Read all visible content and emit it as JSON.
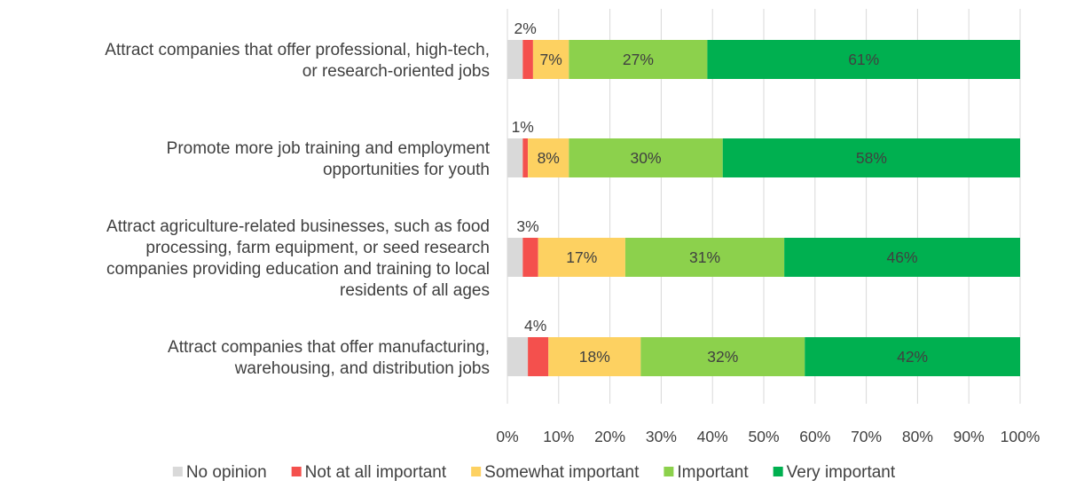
{
  "chart_data": {
    "type": "bar",
    "orientation": "horizontal",
    "stacked": true,
    "categories": [
      [
        "Attract companies that offer professional, high-tech,",
        "or research-oriented jobs"
      ],
      [
        "Promote more job training and employment",
        "opportunities for youth"
      ],
      [
        "Attract agriculture-related businesses, such as food",
        "processing, farm equipment, or seed research",
        "companies providing education and training to local",
        "residents of all ages"
      ],
      [
        "Attract companies that offer manufacturing,",
        "warehousing, and distribution jobs"
      ]
    ],
    "series": [
      {
        "name": "No opinion",
        "color": "#d9d9d9",
        "values": [
          3,
          3,
          3,
          4
        ],
        "labels": [
          "",
          "",
          "",
          ""
        ]
      },
      {
        "name": "Not at all important",
        "color": "#f4504d",
        "values": [
          2,
          1,
          3,
          4
        ],
        "labels": [
          "2%",
          "1%",
          "3%",
          "4%"
        ],
        "label_position": "above"
      },
      {
        "name": "Somewhat important",
        "color": "#fdd161",
        "values": [
          7,
          8,
          17,
          18
        ],
        "labels": [
          "7%",
          "8%",
          "17%",
          "18%"
        ]
      },
      {
        "name": "Important",
        "color": "#8cd14c",
        "values": [
          27,
          30,
          31,
          32
        ],
        "labels": [
          "27%",
          "30%",
          "31%",
          "32%"
        ]
      },
      {
        "name": "Very important",
        "color": "#00b050",
        "values": [
          61,
          58,
          46,
          42
        ],
        "labels": [
          "61%",
          "58%",
          "46%",
          "42%"
        ]
      }
    ],
    "xlim": [
      0,
      100
    ],
    "x_ticks": [
      "0%",
      "10%",
      "20%",
      "30%",
      "40%",
      "50%",
      "60%",
      "70%",
      "80%",
      "90%",
      "100%"
    ],
    "grid": true,
    "legend_position": "bottom",
    "title": "",
    "xlabel": "",
    "ylabel": ""
  }
}
